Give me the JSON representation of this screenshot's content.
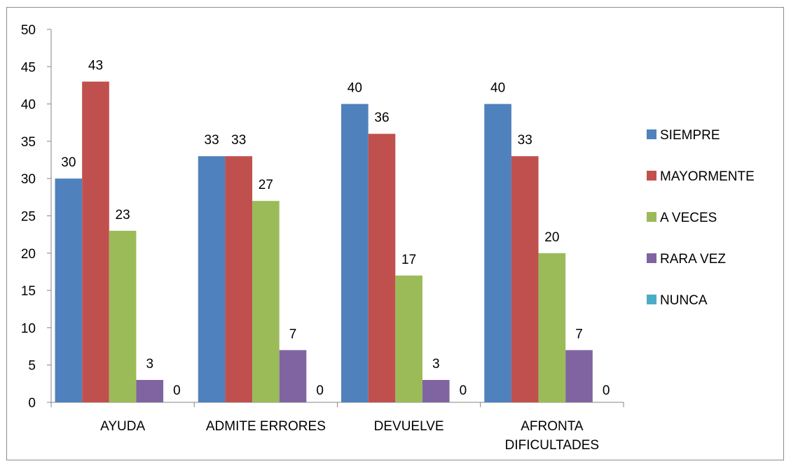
{
  "chart_data": {
    "type": "bar",
    "categories": [
      [
        "AYUDA"
      ],
      [
        "ADMITE ERRORES"
      ],
      [
        "DEVUELVE"
      ],
      [
        "AFRONTA",
        "DIFICULTADES"
      ]
    ],
    "series": [
      {
        "name": "SIEMPRE",
        "color": "#4F81BD",
        "values": [
          30,
          33,
          40,
          40
        ]
      },
      {
        "name": "MAYORMENTE",
        "color": "#C0504D",
        "values": [
          43,
          33,
          36,
          33
        ]
      },
      {
        "name": "A VECES",
        "color": "#9BBB59",
        "values": [
          23,
          27,
          17,
          20
        ]
      },
      {
        "name": "RARA VEZ",
        "color": "#8064A2",
        "values": [
          3,
          7,
          3,
          7
        ]
      },
      {
        "name": "NUNCA",
        "color": "#4BACC6",
        "values": [
          0,
          0,
          0,
          0
        ]
      }
    ],
    "title": "",
    "xlabel": "",
    "ylabel": "",
    "ylim": [
      0,
      50
    ],
    "yticks": [
      0,
      5,
      10,
      15,
      20,
      25,
      30,
      35,
      40,
      45,
      50
    ],
    "grid": false,
    "legend": "right",
    "data_labels": true
  }
}
